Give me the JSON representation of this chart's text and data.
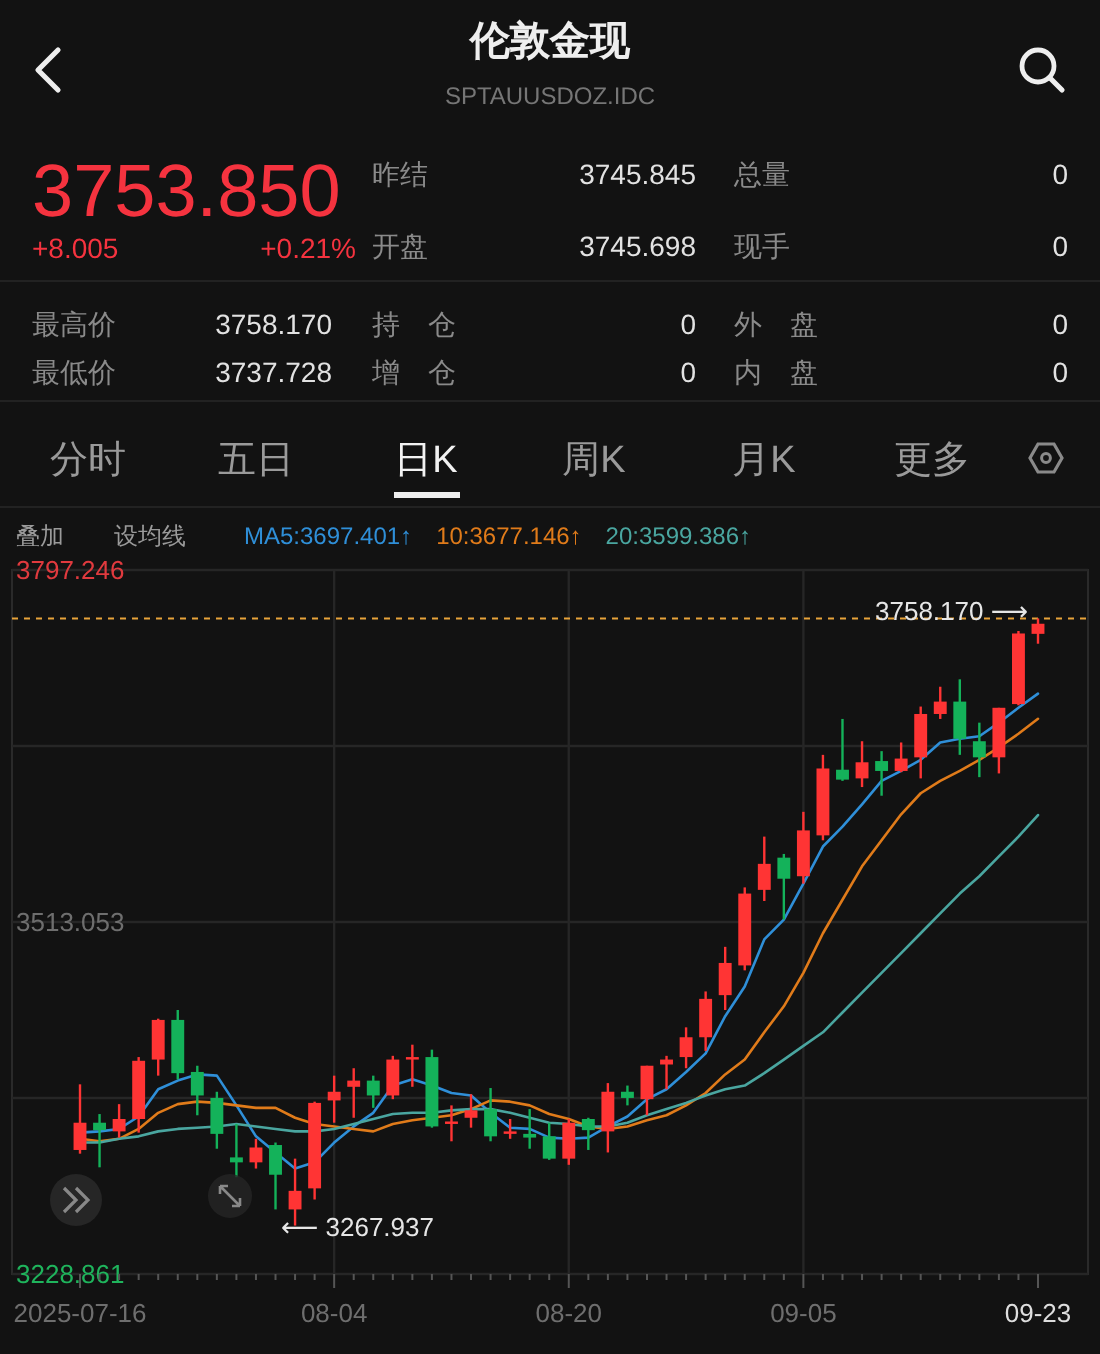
{
  "chart_data": {
    "type": "candlestick",
    "title": "伦敦金现",
    "subtitle": "SPTAUUSDOZ.IDC",
    "categories": [
      "2025-07-16",
      null,
      null,
      null,
      null,
      null,
      null,
      null,
      null,
      null,
      null,
      null,
      null,
      "08-04",
      null,
      null,
      null,
      null,
      null,
      null,
      null,
      null,
      null,
      null,
      null,
      "08-20",
      null,
      null,
      null,
      null,
      null,
      null,
      null,
      null,
      null,
      null,
      null,
      "09-05",
      null,
      null,
      null,
      null,
      null,
      null,
      null,
      null,
      null,
      null,
      null,
      "09-23"
    ],
    "ohlc": [
      [
        3329,
        3382,
        3326,
        3351
      ],
      [
        3351,
        3358,
        3315,
        3345
      ],
      [
        3344,
        3366,
        3339,
        3354
      ],
      [
        3354,
        3404,
        3343,
        3401
      ],
      [
        3402,
        3435,
        3389,
        3434
      ],
      [
        3434,
        3442,
        3386,
        3391
      ],
      [
        3392,
        3397,
        3357,
        3373
      ],
      [
        3371,
        3376,
        3330,
        3342
      ],
      [
        3323,
        3350,
        3307,
        3319
      ],
      [
        3319,
        3338,
        3314,
        3331
      ],
      [
        3333,
        3335,
        3281,
        3309
      ],
      [
        3281,
        3322,
        3267.937,
        3296
      ],
      [
        3298,
        3368,
        3289,
        3367
      ],
      [
        3369,
        3389,
        3351,
        3376
      ],
      [
        3380,
        3395,
        3355,
        3385
      ],
      [
        3385,
        3389,
        3363,
        3373
      ],
      [
        3373,
        3405,
        3370,
        3402
      ],
      [
        3402,
        3414,
        3380,
        3404
      ],
      [
        3404,
        3410,
        3347,
        3348
      ],
      [
        3350,
        3365,
        3336,
        3352
      ],
      [
        3355,
        3374,
        3347,
        3361
      ],
      [
        3362,
        3379,
        3336,
        3340
      ],
      [
        3342,
        3354,
        3338,
        3344
      ],
      [
        3342,
        3362,
        3330,
        3339
      ],
      [
        3340,
        3351,
        3321,
        3322
      ],
      [
        3322,
        3354,
        3317,
        3351
      ],
      [
        3354,
        3355,
        3329,
        3345
      ],
      [
        3344,
        3383,
        3327,
        3376
      ],
      [
        3376,
        3381,
        3365,
        3371
      ],
      [
        3370,
        3397,
        3357,
        3397
      ],
      [
        3398,
        3405,
        3378,
        3402
      ],
      [
        3404,
        3428,
        3395,
        3420
      ],
      [
        3420,
        3457,
        3409,
        3451
      ],
      [
        3454,
        3493,
        3442,
        3480
      ],
      [
        3478,
        3541,
        3474,
        3536
      ],
      [
        3539,
        3582,
        3530,
        3560
      ],
      [
        3565,
        3568,
        3515,
        3548
      ],
      [
        3550,
        3602,
        3544,
        3587
      ],
      [
        3583,
        3648,
        3579,
        3637
      ],
      [
        3636,
        3677,
        3627,
        3628
      ],
      [
        3629,
        3659,
        3622,
        3642
      ],
      [
        3643,
        3651,
        3615,
        3635
      ],
      [
        3635,
        3658,
        3634,
        3645
      ],
      [
        3646,
        3687,
        3629,
        3681
      ],
      [
        3681,
        3703,
        3677,
        3691
      ],
      [
        3691,
        3709,
        3648,
        3661
      ],
      [
        3659,
        3674,
        3630,
        3646
      ],
      [
        3646,
        3686,
        3633,
        3686
      ],
      [
        3689,
        3748,
        3688,
        3746
      ],
      [
        3745.698,
        3758.17,
        3737.728,
        3753.85
      ]
    ],
    "series": [
      {
        "name": "MA5:3697.401↑",
        "type": "line",
        "color": "#2f8fd8",
        "values": [
          3343,
          3344,
          3346,
          3356,
          3378,
          3385,
          3390,
          3389,
          3365,
          3340,
          3327,
          3314,
          3319,
          3335,
          3348,
          3359,
          3381,
          3386,
          3381,
          3375,
          3373,
          3359,
          3347,
          3346,
          3339,
          3338,
          3339,
          3348,
          3356,
          3370,
          3378,
          3392,
          3407,
          3437,
          3461,
          3499,
          3515,
          3544,
          3574,
          3590,
          3608,
          3627,
          3635,
          3644,
          3658,
          3661,
          3663,
          3674,
          3686,
          3697.401
        ]
      },
      {
        "name": "10:3677.146↑",
        "type": "line",
        "color": "#e07b1a",
        "values": [
          3338,
          3336,
          3338,
          3346,
          3359,
          3366,
          3368,
          3367,
          3365,
          3363,
          3363,
          3355,
          3350,
          3348,
          3346,
          3344,
          3350,
          3353,
          3355,
          3357,
          3362,
          3369,
          3368,
          3365,
          3358,
          3354,
          3348,
          3346,
          3348,
          3353,
          3357,
          3365,
          3375,
          3390,
          3402,
          3424,
          3445,
          3472,
          3504,
          3531,
          3558,
          3579,
          3600,
          3617,
          3627,
          3635,
          3644,
          3654,
          3665,
          3677.146
        ]
      },
      {
        "name": "20:3599.386↑",
        "type": "line",
        "color": "#4aa6a0",
        "values": [
          3335,
          3335,
          3338,
          3340,
          3344,
          3346,
          3347,
          3348,
          3350,
          3348,
          3346,
          3344,
          3344,
          3346,
          3350,
          3354,
          3358,
          3359,
          3359,
          3361,
          3362,
          3362,
          3359,
          3355,
          3351,
          3350,
          3348,
          3348,
          3351,
          3357,
          3362,
          3367,
          3373,
          3378,
          3381,
          3391,
          3402,
          3413,
          3424,
          3440,
          3456,
          3472,
          3488,
          3504,
          3520,
          3536,
          3550,
          3566,
          3582,
          3599.386
        ]
      }
    ],
    "ylim": [
      3228.861,
      3797.246
    ],
    "yticks": [
      3228.861,
      {
        "value": 3370.96,
        "label": null
      },
      3513.053,
      {
        "value": 3655.15,
        "label": null
      },
      3797.246
    ],
    "grid": true,
    "legend": "top",
    "ref_lines": [
      {
        "axis": "y",
        "value": 3758.17,
        "color": "#e8a33a",
        "line_style": "dashed"
      }
    ],
    "annotations": [
      "3753.850",
      "+8.005",
      "+0.21%",
      "昨结",
      "3745.845",
      "总量",
      "0",
      "开盘",
      "3745.698",
      "现手",
      "0",
      "最高价",
      "3758.170",
      "持　仓",
      "0",
      "外　盘",
      "0",
      "最低价",
      "3737.728",
      "增　仓",
      "0",
      "内　盘",
      "0",
      "分时",
      "五日",
      "日K",
      "周K",
      "月K",
      "更多",
      "叠加",
      "设均线",
      "3758.170 ⟶",
      "⟵ 3267.937"
    ]
  }
}
